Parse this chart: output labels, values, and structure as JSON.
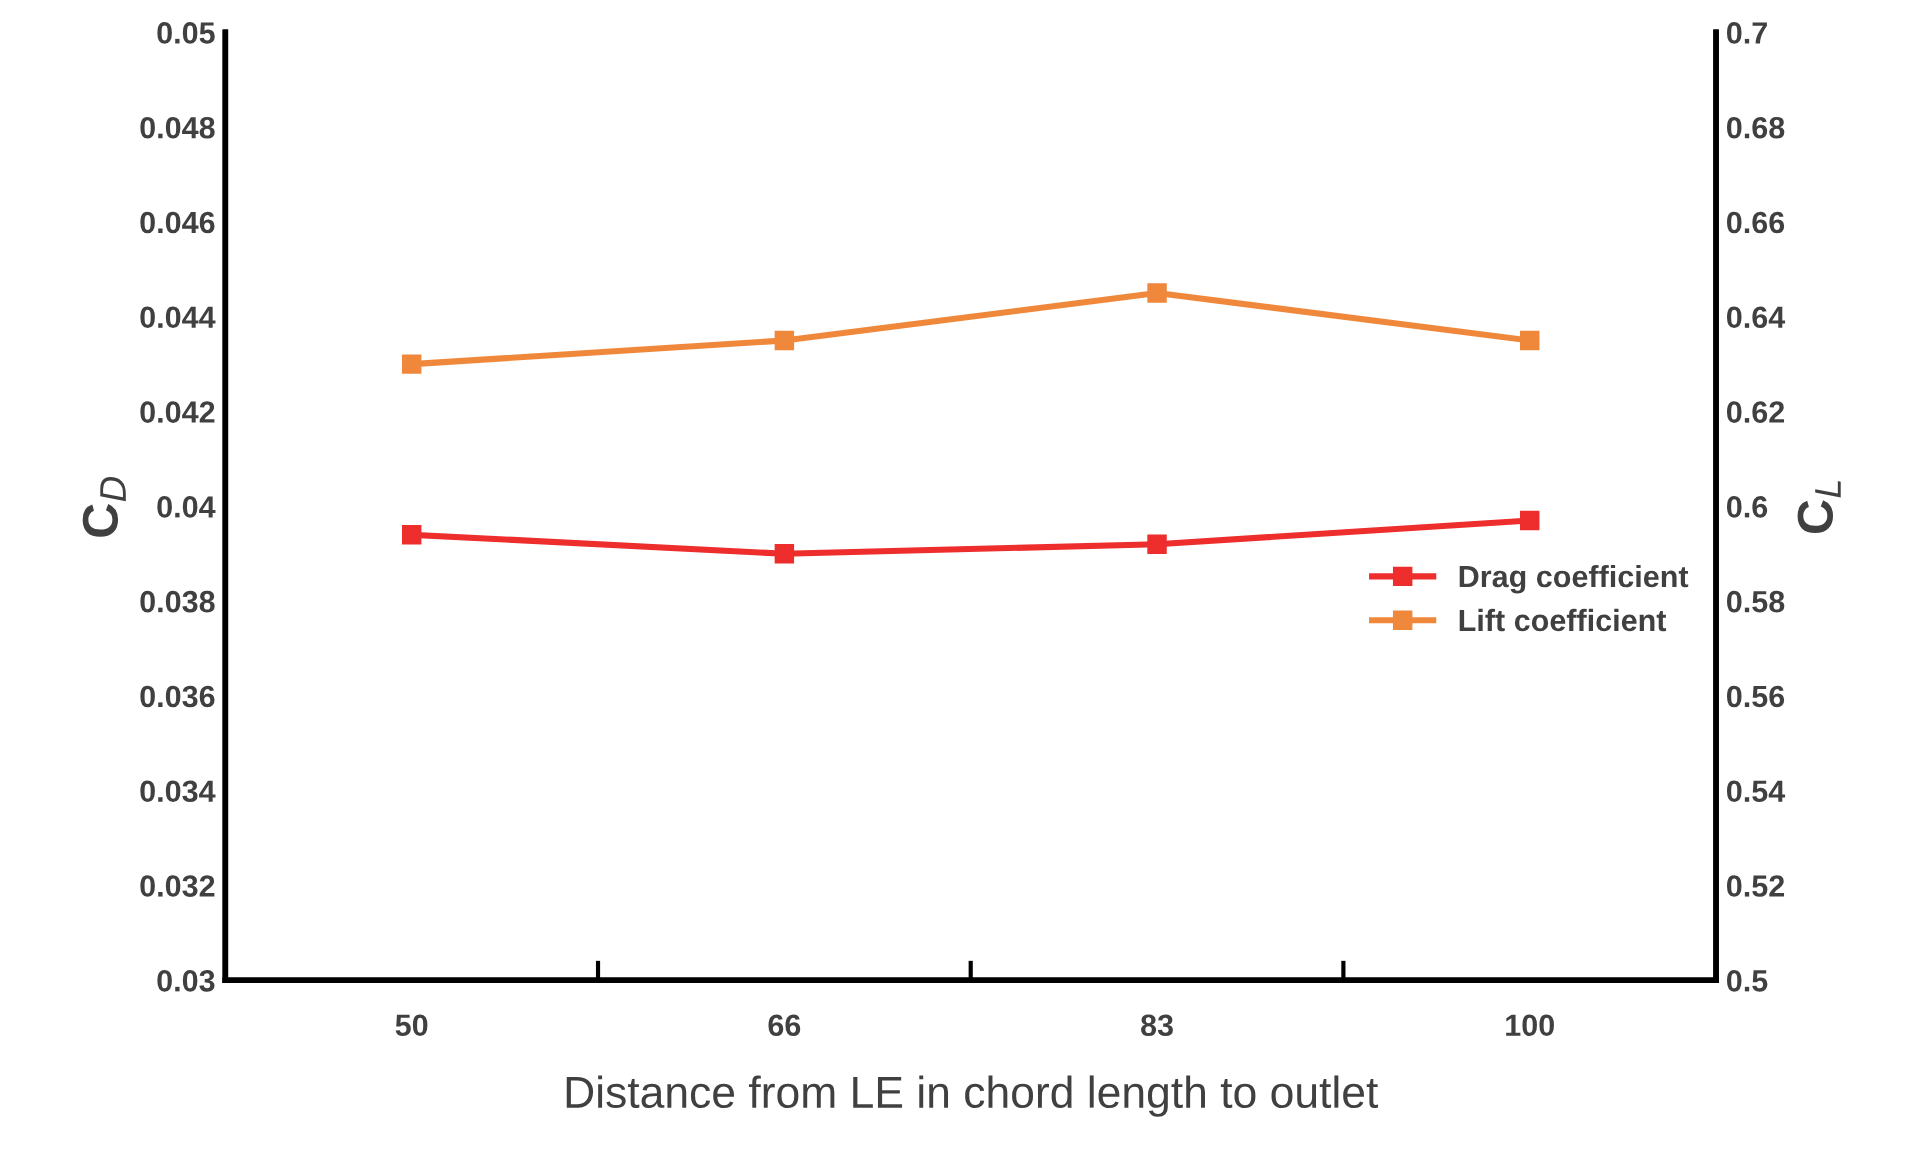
{
  "chart_data": {
    "type": "line",
    "xlabel": "Distance from LE in chord length to outlet",
    "ylabel": "C$_{D}$",
    "y2label": "C$_{L}$",
    "categories": [
      "50",
      "66",
      "83",
      "100"
    ],
    "series": [
      {
        "name": "Drag coefficient",
        "color": "#ee2d2d",
        "values": [
          0.0394,
          0.039,
          0.0392,
          0.0397
        ]
      },
      {
        "name": "Lift coefficient",
        "color": "#f0883c",
        "values": [
          0.63,
          0.635,
          0.645,
          0.635
        ],
        "axis": "y2"
      }
    ],
    "ylim": [
      0.03,
      0.05
    ],
    "yticks": [
      0.03,
      0.032,
      0.034,
      0.036,
      0.038,
      0.04,
      0.042,
      0.044,
      0.046,
      0.048,
      0.05
    ],
    "y2lim": [
      0.5,
      0.7
    ],
    "y2ticks": [
      0.5,
      0.52,
      0.54,
      0.56,
      0.58,
      0.6,
      0.62,
      0.64,
      0.66,
      0.68,
      0.7
    ],
    "marker": "square",
    "line_style": "solid",
    "legend": "right",
    "grid": false
  }
}
